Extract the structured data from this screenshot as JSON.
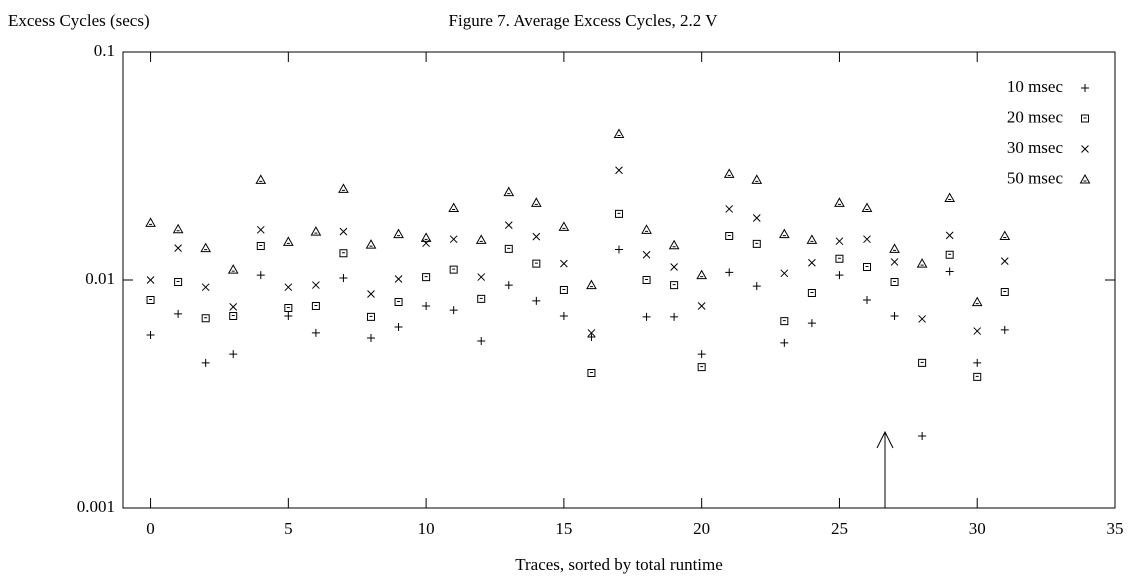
{
  "chart_data": {
    "type": "scatter",
    "title": "Figure 7. Average Excess Cycles, 2.2 V",
    "x_label": "Traces, sorted by total runtime",
    "y_label": "Excess Cycles (secs)",
    "x": [
      0,
      1,
      2,
      3,
      4,
      5,
      6,
      7,
      8,
      9,
      10,
      11,
      12,
      13,
      14,
      15,
      16,
      17,
      18,
      19,
      20,
      21,
      22,
      23,
      24,
      25,
      26,
      27,
      28,
      29,
      30,
      31
    ],
    "series": [
      {
        "name": "10 msec",
        "color": "#000000",
        "marker": "plus",
        "values": [
          0.00574,
          0.0071,
          0.00433,
          0.00473,
          0.0105,
          0.00695,
          0.00586,
          0.0102,
          0.00557,
          0.00622,
          0.00769,
          0.00738,
          0.0054,
          0.0095,
          0.0081,
          0.00695,
          0.00562,
          0.0136,
          0.00689,
          0.00689,
          0.00473,
          0.0108,
          0.0094,
          0.0053,
          0.00647,
          0.0105,
          0.00817,
          0.00695,
          0.00207,
          0.0109,
          0.00433,
          0.00604
        ]
      },
      {
        "name": "20 msec",
        "color": "#000000",
        "marker": "square",
        "values": [
          0.00817,
          0.0098,
          0.0068,
          0.00695,
          0.0141,
          0.00754,
          0.00769,
          0.0131,
          0.00689,
          0.00801,
          0.0103,
          0.0111,
          0.00826,
          0.0137,
          0.0118,
          0.00904,
          0.00391,
          0.0195,
          0.01,
          0.0095,
          0.00415,
          0.0156,
          0.0144,
          0.0066,
          0.00877,
          0.0124,
          0.0114,
          0.0098,
          0.00433,
          0.0129,
          0.00376,
          0.00886
        ]
      },
      {
        "name": "30 msec",
        "color": "#000000",
        "marker": "cross",
        "values": [
          0.01,
          0.0138,
          0.0093,
          0.00762,
          0.0166,
          0.0093,
          0.0095,
          0.0163,
          0.00868,
          0.0101,
          0.0145,
          0.0151,
          0.0103,
          0.0174,
          0.0155,
          0.0118,
          0.00586,
          0.0303,
          0.0129,
          0.0114,
          0.00769,
          0.0205,
          0.0187,
          0.0107,
          0.0119,
          0.0148,
          0.0151,
          0.012,
          0.00675,
          0.0157,
          0.00597,
          0.0121
        ]
      },
      {
        "name": "50 msec",
        "color": "#000000",
        "marker": "triangle",
        "values": [
          0.0178,
          0.0167,
          0.0138,
          0.0111,
          0.0275,
          0.0147,
          0.0163,
          0.0251,
          0.0143,
          0.0159,
          0.0153,
          0.0207,
          0.015,
          0.0243,
          0.0218,
          0.0171,
          0.0095,
          0.0437,
          0.0166,
          0.0142,
          0.0105,
          0.0292,
          0.0275,
          0.0159,
          0.015,
          0.0218,
          0.0207,
          0.0137,
          0.0118,
          0.0229,
          0.008,
          0.0156
        ]
      }
    ],
    "xlim": [
      -1,
      35
    ],
    "xticks": [
      0,
      5,
      10,
      15,
      20,
      25,
      30,
      35
    ],
    "ylim": [
      0.001,
      0.1
    ],
    "yticks": [
      0.001,
      0.01,
      0.1
    ],
    "log_y": true,
    "grid": false,
    "legend": "top-right"
  }
}
